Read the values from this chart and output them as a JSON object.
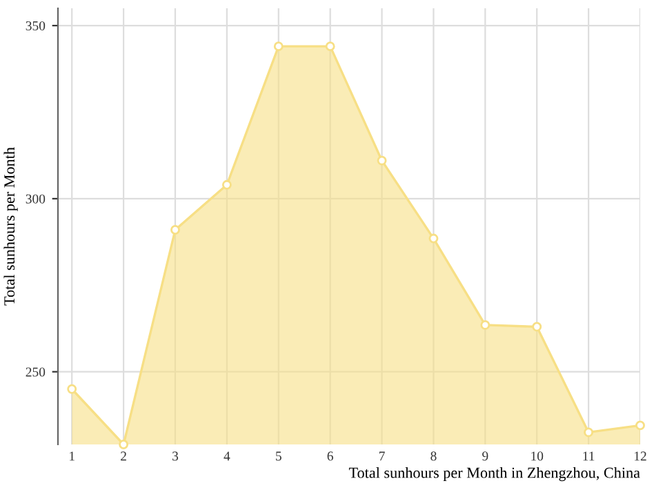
{
  "chart_data": {
    "type": "area",
    "x": [
      1,
      2,
      3,
      4,
      5,
      6,
      7,
      8,
      9,
      10,
      11,
      12
    ],
    "series": [
      {
        "color": "#f7df85",
        "values": [
          245,
          229,
          291,
          304,
          344,
          344,
          311,
          288.5,
          263.5,
          263,
          232.5,
          234.5
        ]
      }
    ],
    "xlim": [
      0.73,
      12
    ],
    "ylim": [
      229,
      355
    ],
    "xticks": [
      1,
      2,
      3,
      4,
      5,
      6,
      7,
      8,
      9,
      10,
      11,
      12
    ],
    "yticks": [
      250,
      300,
      350
    ],
    "xlabel": "Total sunhours per Month in Zhengzhou, China",
    "ylabel": "Total sunhours per Month",
    "grid": true,
    "marker": "circle",
    "line_style": "solid"
  }
}
